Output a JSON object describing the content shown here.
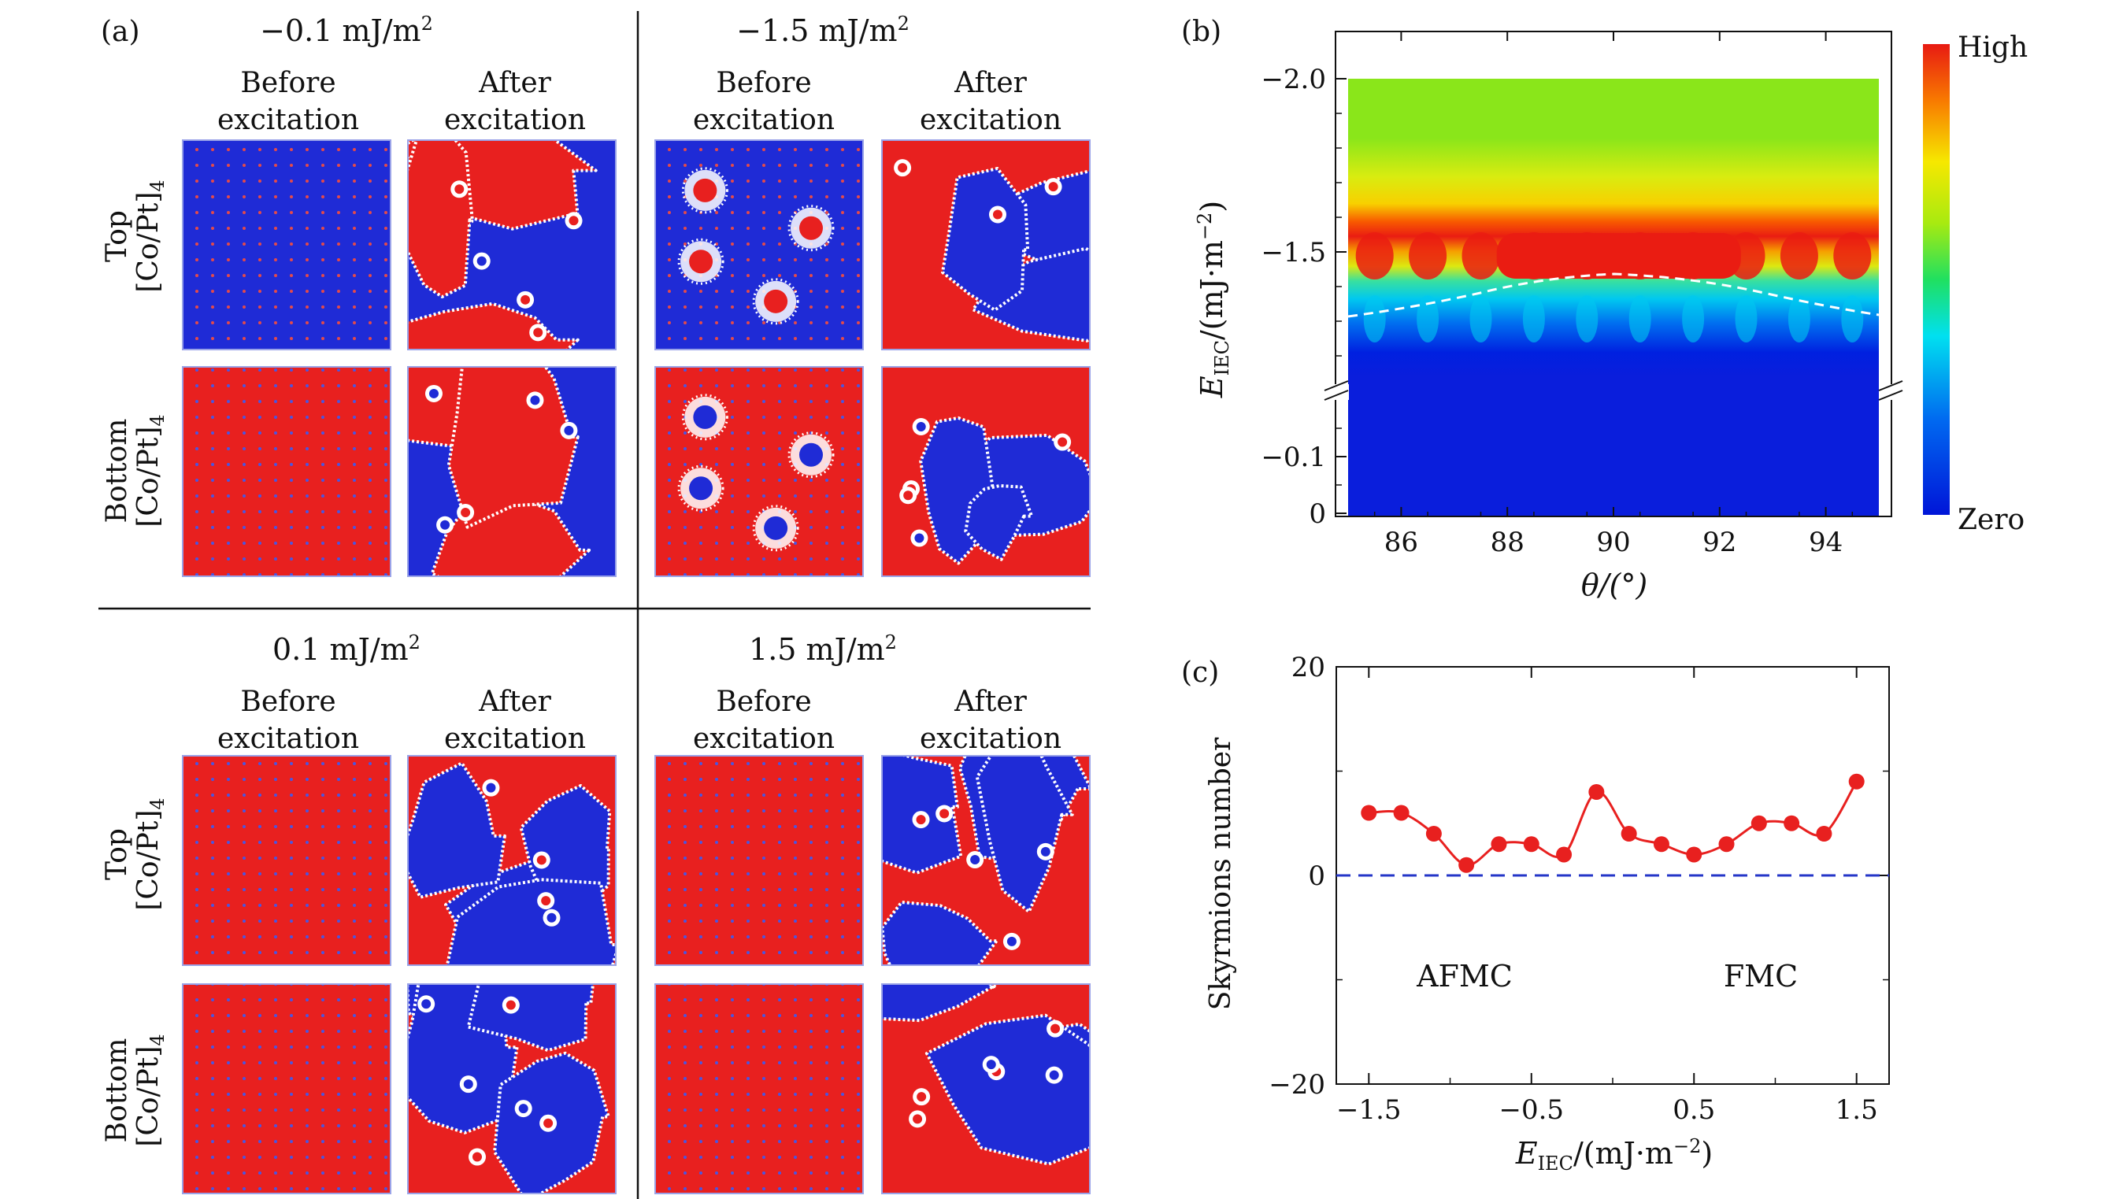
{
  "panel_a": {
    "label": "(a)",
    "quadrants": [
      {
        "energy": "−0.1 mJ/m",
        "energy_sup": "2",
        "before": [
          "Before",
          "excitation"
        ],
        "after": [
          "After",
          "excitation"
        ]
      },
      {
        "energy": "−1.5 mJ/m",
        "energy_sup": "2",
        "before": [
          "Before",
          "excitation"
        ],
        "after": [
          "After",
          "excitation"
        ]
      },
      {
        "energy": "0.1 mJ/m",
        "energy_sup": "2",
        "before": [
          "Before",
          "excitation"
        ],
        "after": [
          "After",
          "excitation"
        ]
      },
      {
        "energy": "1.5 mJ/m",
        "energy_sup": "2",
        "before": [
          "Before",
          "excitation"
        ],
        "after": [
          "After",
          "excitation"
        ]
      }
    ],
    "row_labels": [
      {
        "line1": "Top",
        "line2": "[Co/Pt]",
        "sub": "4"
      },
      {
        "line1": "Bottom",
        "line2": "[Co/Pt]",
        "sub": "4"
      }
    ],
    "colors": {
      "red": "#e8201f",
      "blue": "#1f2bd6"
    }
  },
  "panel_b": {
    "label": "(b)",
    "colorbar": {
      "high": "High",
      "zero": "Zero"
    },
    "xlabel": "θ/(°)",
    "ylabel_main": "E",
    "ylabel_sub": "IEC",
    "ylabel_rest": "/(mJ·m",
    "ylabel_sup": "−2",
    "ylabel_end": ")",
    "chart_data": {
      "type": "heatmap",
      "x_ticks": [
        "86",
        "88",
        "90",
        "92",
        "94"
      ],
      "x_range": [
        85,
        95
      ],
      "y_ticks_upper": [
        "−2.0",
        "−1.5"
      ],
      "y_ticks_lower": [
        "−0.1",
        "0"
      ],
      "y_axis_break": true
    }
  },
  "panel_c": {
    "label": "(c)",
    "xlabel_main": "E",
    "xlabel_sub": "IEC",
    "xlabel_rest": "/(mJ·m",
    "xlabel_sup": "−2",
    "xlabel_end": ")",
    "ylabel": "Skyrmions number",
    "annotations": [
      "AFMC",
      "FMC"
    ],
    "x_ticks": [
      "−1.5",
      "−0.5",
      "0.5",
      "1.5"
    ],
    "y_ticks": [
      "20",
      "0",
      "−20"
    ],
    "chart_data": {
      "type": "scatter",
      "x": [
        -1.5,
        -1.3,
        -1.1,
        -0.9,
        -0.7,
        -0.5,
        -0.3,
        -0.1,
        0.1,
        0.3,
        0.5,
        0.7,
        0.9,
        1.1,
        1.3,
        1.5
      ],
      "y": [
        6,
        6,
        4,
        1,
        3,
        3,
        2,
        8,
        4,
        3,
        2,
        3,
        5,
        5,
        4,
        9
      ],
      "xlim": [
        -1.7,
        1.7
      ],
      "ylim": [
        -20,
        20
      ],
      "reference_line": 0,
      "marker_color": "#e8201f",
      "line_color": "#e8201f",
      "reference_color": "#2436c8"
    }
  }
}
